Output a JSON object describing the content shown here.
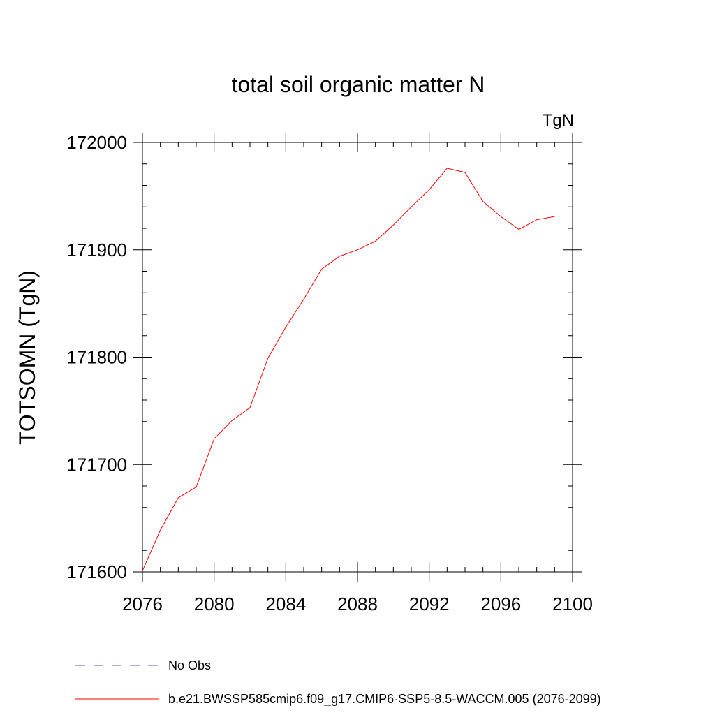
{
  "chart_data": {
    "type": "line",
    "title": "total soil organic matter N",
    "units_label": "TgN",
    "ylabel": "TOTSOMN  (TgN)",
    "xlabel": "",
    "xlim": [
      2076,
      2100
    ],
    "ylim": [
      171600,
      172000
    ],
    "x_ticks": [
      2076,
      2080,
      2084,
      2088,
      2092,
      2096,
      2100
    ],
    "y_ticks": [
      171600,
      171700,
      171800,
      171900,
      172000
    ],
    "x_minor_step": 1,
    "y_minor_step": 20,
    "series": [
      {
        "name": "b.e21.BWSSP585cmip6.f09_g17.CMIP6-SSP5-8.5-WACCM.005 (2076-2099)",
        "color": "#ff0000",
        "style": "solid",
        "x": [
          2076,
          2077,
          2078,
          2079,
          2080,
          2081,
          2082,
          2083,
          2084,
          2085,
          2086,
          2087,
          2088,
          2089,
          2090,
          2091,
          2092,
          2093,
          2094,
          2095,
          2096,
          2097,
          2098,
          2099
        ],
        "y": [
          171601,
          171639,
          171669,
          171679,
          171724,
          171741,
          171753,
          171799,
          171828,
          171854,
          171882,
          171894,
          171900,
          171908,
          171923,
          171940,
          171956,
          171976,
          171972,
          171945,
          171931,
          171919,
          171928,
          171931
        ]
      }
    ],
    "legend": [
      {
        "label": "No Obs",
        "color": "#5a50b4",
        "style": "dashed"
      },
      {
        "label": "b.e21.BWSSP585cmip6.f09_g17.CMIP6-SSP5-8.5-WACCM.005 (2076-2099)",
        "color": "#ff0000",
        "style": "solid"
      }
    ],
    "legend_position": "bottom-left",
    "grid": false
  }
}
